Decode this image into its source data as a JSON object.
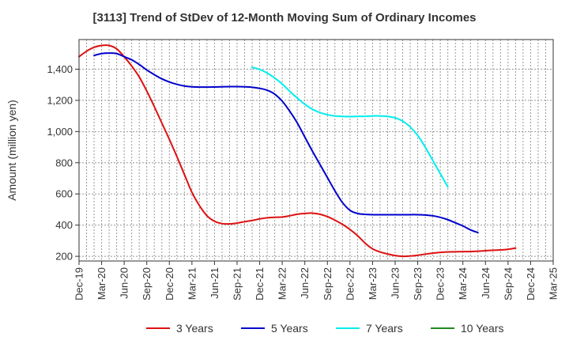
{
  "chart_data": {
    "type": "line",
    "title": "[3113]  Trend of StDev of 12-Month Moving Sum of Ordinary Incomes",
    "ylabel": "Amount (million yen)",
    "xlabel": "",
    "ylim": [
      170,
      1590
    ],
    "y_ticks": [
      200,
      400,
      600,
      800,
      1000,
      1200,
      1400
    ],
    "y_tick_labels": [
      "200",
      "400",
      "600",
      "800",
      "1,000",
      "1,200",
      "1,400"
    ],
    "x_tick_labels": [
      "Dec-19",
      "Mar-20",
      "Jun-20",
      "Sep-20",
      "Dec-20",
      "Mar-21",
      "Jun-21",
      "Sep-21",
      "Dec-21",
      "Mar-22",
      "Jun-22",
      "Sep-22",
      "Dec-22",
      "Mar-23",
      "Jun-23",
      "Sep-23",
      "Dec-23",
      "Mar-24",
      "Jun-24",
      "Sep-24",
      "Dec-24",
      "Mar-25"
    ],
    "grid": true,
    "legend_position": "bottom",
    "series": [
      {
        "name": "3 Years",
        "color": "#dd1111",
        "points": [
          [
            0,
            1480
          ],
          [
            1,
            1515
          ],
          [
            2,
            1540
          ],
          [
            3,
            1552
          ],
          [
            4,
            1552
          ],
          [
            5,
            1530
          ],
          [
            6,
            1480
          ],
          [
            7,
            1420
          ],
          [
            8,
            1350
          ],
          [
            9,
            1260
          ],
          [
            10,
            1160
          ],
          [
            11,
            1055
          ],
          [
            12,
            950
          ],
          [
            13,
            840
          ],
          [
            14,
            725
          ],
          [
            15,
            610
          ],
          [
            16,
            525
          ],
          [
            17,
            460
          ],
          [
            18,
            425
          ],
          [
            19,
            410
          ],
          [
            20,
            408
          ],
          [
            21,
            413
          ],
          [
            22,
            422
          ],
          [
            23,
            430
          ],
          [
            24,
            440
          ],
          [
            25,
            447
          ],
          [
            26,
            450
          ],
          [
            27,
            452
          ],
          [
            28,
            460
          ],
          [
            29,
            470
          ],
          [
            30,
            475
          ],
          [
            31,
            477
          ],
          [
            32,
            470
          ],
          [
            33,
            455
          ],
          [
            34,
            432
          ],
          [
            35,
            405
          ],
          [
            36,
            372
          ],
          [
            37,
            333
          ],
          [
            38,
            285
          ],
          [
            39,
            248
          ],
          [
            40,
            228
          ],
          [
            41,
            215
          ],
          [
            42,
            205
          ],
          [
            43,
            200
          ],
          [
            44,
            202
          ],
          [
            45,
            207
          ],
          [
            46,
            214
          ],
          [
            47,
            220
          ],
          [
            48,
            225
          ],
          [
            49,
            228
          ],
          [
            50,
            229
          ],
          [
            51,
            230
          ],
          [
            52,
            231
          ],
          [
            53,
            233
          ],
          [
            54,
            236
          ],
          [
            55,
            239
          ],
          [
            56,
            241
          ],
          [
            57,
            245
          ],
          [
            58,
            253
          ]
        ]
      },
      {
        "name": "5 Years",
        "color": "#0000cc",
        "points": [
          [
            2,
            1488
          ],
          [
            3,
            1500
          ],
          [
            4,
            1503
          ],
          [
            5,
            1500
          ],
          [
            6,
            1480
          ],
          [
            7,
            1460
          ],
          [
            8,
            1430
          ],
          [
            9,
            1395
          ],
          [
            10,
            1365
          ],
          [
            11,
            1338
          ],
          [
            12,
            1318
          ],
          [
            13,
            1303
          ],
          [
            14,
            1292
          ],
          [
            15,
            1287
          ],
          [
            16,
            1285
          ],
          [
            17,
            1285
          ],
          [
            18,
            1286
          ],
          [
            19,
            1287
          ],
          [
            20,
            1288
          ],
          [
            21,
            1288
          ],
          [
            22,
            1287
          ],
          [
            23,
            1284
          ],
          [
            24,
            1277
          ],
          [
            25,
            1265
          ],
          [
            26,
            1240
          ],
          [
            27,
            1195
          ],
          [
            28,
            1130
          ],
          [
            29,
            1055
          ],
          [
            30,
            965
          ],
          [
            31,
            875
          ],
          [
            32,
            790
          ],
          [
            33,
            705
          ],
          [
            34,
            620
          ],
          [
            35,
            545
          ],
          [
            36,
            495
          ],
          [
            37,
            475
          ],
          [
            38,
            469
          ],
          [
            39,
            467
          ],
          [
            40,
            467
          ],
          [
            41,
            467
          ],
          [
            42,
            467
          ],
          [
            43,
            467
          ],
          [
            44,
            467
          ],
          [
            45,
            467
          ],
          [
            46,
            465
          ],
          [
            47,
            460
          ],
          [
            48,
            450
          ],
          [
            49,
            435
          ],
          [
            50,
            415
          ],
          [
            51,
            395
          ],
          [
            52,
            370
          ],
          [
            53,
            352
          ]
        ]
      },
      {
        "name": "7 Years",
        "color": "#00eeee",
        "points": [
          [
            23,
            1412
          ],
          [
            24,
            1398
          ],
          [
            25,
            1375
          ],
          [
            26,
            1343
          ],
          [
            27,
            1305
          ],
          [
            28,
            1258
          ],
          [
            29,
            1215
          ],
          [
            30,
            1175
          ],
          [
            31,
            1143
          ],
          [
            32,
            1122
          ],
          [
            33,
            1108
          ],
          [
            34,
            1100
          ],
          [
            35,
            1097
          ],
          [
            36,
            1096
          ],
          [
            37,
            1097
          ],
          [
            38,
            1098
          ],
          [
            39,
            1100
          ],
          [
            40,
            1100
          ],
          [
            41,
            1097
          ],
          [
            42,
            1088
          ],
          [
            43,
            1067
          ],
          [
            44,
            1030
          ],
          [
            45,
            975
          ],
          [
            46,
            900
          ],
          [
            47,
            815
          ],
          [
            48,
            730
          ],
          [
            49,
            645
          ]
        ]
      },
      {
        "name": "10 Years",
        "color": "#228822",
        "points": []
      }
    ]
  }
}
